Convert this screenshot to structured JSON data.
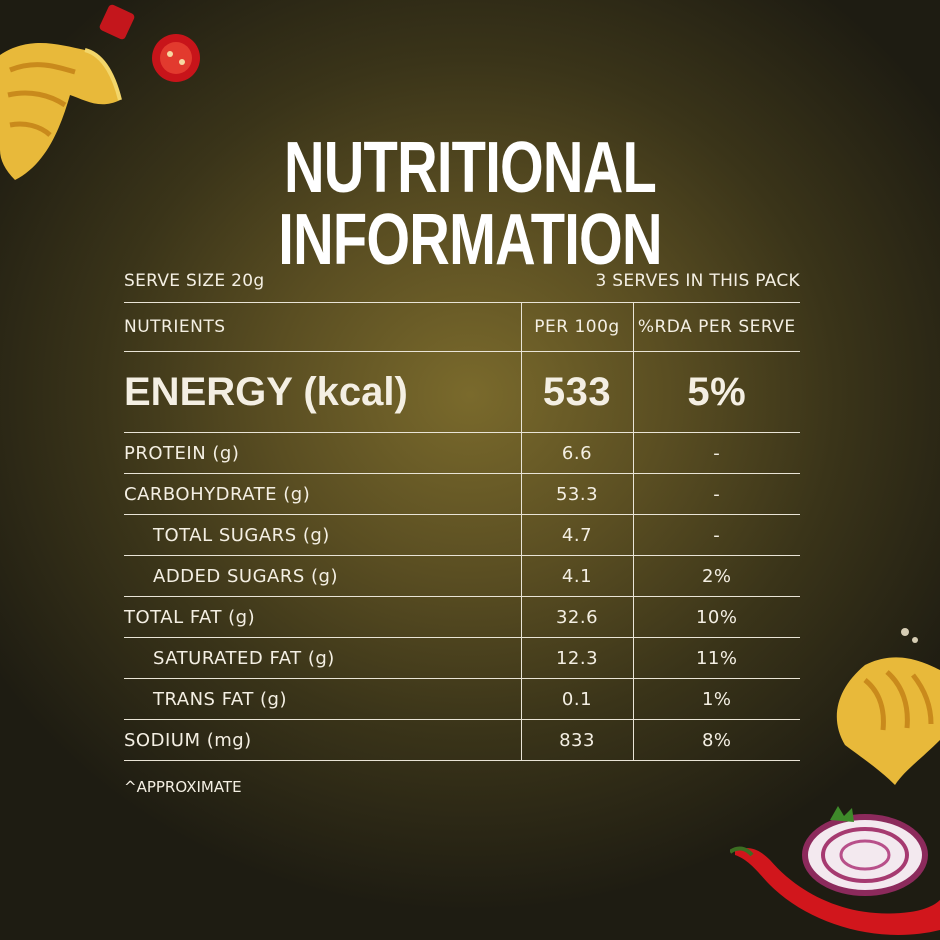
{
  "title": "NUTRITIONAL INFORMATION",
  "serve_size": "SERVE SIZE 20g",
  "serves_in_pack": "3 SERVES IN THIS PACK",
  "headers": [
    "NUTRIENTS",
    "PER 100g",
    "%RDA PER SERVE"
  ],
  "energy": {
    "name": "ENERGY (kcal)",
    "per100": "533",
    "rda": "5%"
  },
  "rows": [
    {
      "name": "PROTEIN (g)",
      "per100": "6.6",
      "rda": "-"
    },
    {
      "name": "CARBOHYDRATE (g)",
      "per100": "53.3",
      "rda": "-"
    },
    {
      "name": "TOTAL SUGARS (g)",
      "per100": "4.7",
      "rda": "-"
    },
    {
      "name": "ADDED SUGARS (g)",
      "per100": "4.1",
      "rda": "2%"
    },
    {
      "name": "TOTAL FAT (g)",
      "per100": "32.6",
      "rda": "10%"
    },
    {
      "name": "SATURATED FAT (g)",
      "per100": "12.3",
      "rda": "11%"
    },
    {
      "name": "TRANS FAT (g)",
      "per100": "0.1",
      "rda": "1%"
    },
    {
      "name": "SODIUM (mg)",
      "per100": "833",
      "rda": "8%"
    }
  ],
  "footnote": "^APPROXIMATE"
}
